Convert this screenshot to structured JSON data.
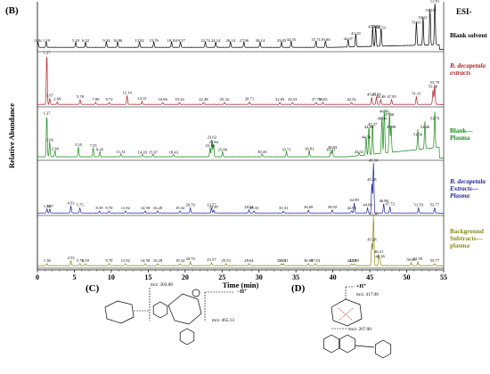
{
  "figure": {
    "panel_b": "(B)",
    "panel_c": "(C)",
    "panel_d": "(D)",
    "ion_mode": "ESI-",
    "xlabel": "Time (min)",
    "ylabel": "Relative Abundance"
  },
  "chart_data": {
    "type": "line",
    "xlim": [
      0,
      55
    ],
    "x_ticks": [
      0,
      5,
      10,
      15,
      20,
      25,
      30,
      35,
      40,
      45,
      50,
      55
    ],
    "traces": [
      {
        "name": "Blank solvent",
        "color": "#000000",
        "label_style": "normal",
        "peaks": [
          {
            "t": 0.06,
            "h": 0.12,
            "label": "0.06"
          },
          {
            "t": 1.19,
            "h": 0.12,
            "label": "1.19"
          },
          {
            "t": 5.19,
            "h": 0.12,
            "label": "5.19"
          },
          {
            "t": 6.52,
            "h": 0.12,
            "label": "6.52"
          },
          {
            "t": 9.34,
            "h": 0.12,
            "label": "9.34"
          },
          {
            "t": 10.86,
            "h": 0.12,
            "label": "10.86"
          },
          {
            "t": 13.82,
            "h": 0.12,
            "label": "13.82"
          },
          {
            "t": 15.76,
            "h": 0.12,
            "label": "15.76"
          },
          {
            "t": 18.16,
            "h": 0.12,
            "label": "18.16"
          },
          {
            "t": 19.37,
            "h": 0.12,
            "label": "19.37"
          },
          {
            "t": 22.74,
            "h": 0.12,
            "label": "22.74"
          },
          {
            "t": 24.14,
            "h": 0.12,
            "label": "24.14"
          },
          {
            "t": 26.14,
            "h": 0.12,
            "label": "26.14"
          },
          {
            "t": 27.96,
            "h": 0.12,
            "label": "27.96"
          },
          {
            "t": 30.14,
            "h": 0.12,
            "label": "30.14"
          },
          {
            "t": 33.05,
            "h": 0.12,
            "label": "33.05"
          },
          {
            "t": 34.35,
            "h": 0.14,
            "label": "34.35"
          },
          {
            "t": 37.71,
            "h": 0.14,
            "label": "37.71"
          },
          {
            "t": 39.0,
            "h": 0.14,
            "label": "39.00"
          },
          {
            "t": 42.07,
            "h": 0.16,
            "label": "42.07"
          },
          {
            "t": 43.1,
            "h": 0.28,
            "label": "43.10"
          },
          {
            "t": 45.39,
            "h": 0.42,
            "label": "45.39"
          },
          {
            "t": 45.8,
            "h": 0.43,
            "label": "45.80"
          },
          {
            "t": 46.53,
            "h": 0.4,
            "label": "46.53"
          },
          {
            "t": 51.31,
            "h": 0.52,
            "label": "51.31"
          },
          {
            "t": 52.21,
            "h": 0.62,
            "label": "52.21"
          },
          {
            "t": 53.15,
            "h": 0.78,
            "label": "53.15"
          },
          {
            "t": 53.81,
            "h": 1.0,
            "label": "53.81"
          }
        ]
      },
      {
        "name": "B. decapetala extracts",
        "color": "#b2222a",
        "label_style": "italic-first",
        "peaks": [
          {
            "t": 1.27,
            "h": 1.0,
            "label": "1.27"
          },
          {
            "t": 1.67,
            "h": 0.12,
            "label": "1.67"
          },
          {
            "t": 2.69,
            "h": 0.05,
            "label": "2.69"
          },
          {
            "t": 5.78,
            "h": 0.1,
            "label": "5.78"
          },
          {
            "t": 7.89,
            "h": 0.04,
            "label": "7.89"
          },
          {
            "t": 9.72,
            "h": 0.04,
            "label": "9.72"
          },
          {
            "t": 12.14,
            "h": 0.18,
            "label": "12.14"
          },
          {
            "t": 14.15,
            "h": 0.06,
            "label": "14.15"
          },
          {
            "t": 16.96,
            "h": 0.04,
            "label": "16.96"
          },
          {
            "t": 19.24,
            "h": 0.04,
            "label": "19.24"
          },
          {
            "t": 22.48,
            "h": 0.04,
            "label": "22.48"
          },
          {
            "t": 25.32,
            "h": 0.04,
            "label": "25.32"
          },
          {
            "t": 28.71,
            "h": 0.05,
            "label": "28.71"
          },
          {
            "t": 32.83,
            "h": 0.04,
            "label": "32.83"
          },
          {
            "t": 34.53,
            "h": 0.04,
            "label": "34.53"
          },
          {
            "t": 37.73,
            "h": 0.04,
            "label": "37.73"
          },
          {
            "t": 38.65,
            "h": 0.04,
            "label": "38.65"
          },
          {
            "t": 42.52,
            "h": 0.04,
            "label": "42.52"
          },
          {
            "t": 45.25,
            "h": 0.14,
            "label": "45.25"
          },
          {
            "t": 45.89,
            "h": 0.14,
            "label": "45.89"
          },
          {
            "t": 46.48,
            "h": 0.1,
            "label": "46.48"
          },
          {
            "t": 47.95,
            "h": 0.1,
            "label": "47.95"
          },
          {
            "t": 51.31,
            "h": 0.16,
            "label": "51.31"
          },
          {
            "t": 53.56,
            "h": 0.3,
            "label": "53.56"
          },
          {
            "t": 53.79,
            "h": 0.38,
            "label": "53.79"
          }
        ]
      },
      {
        "name": "Blank—Plasma",
        "color": "#1a8a1a",
        "label_style": "normal",
        "peaks": [
          {
            "t": 1.27,
            "h": 0.82,
            "label": "1.27"
          },
          {
            "t": 1.66,
            "h": 0.3,
            "label": "1.66"
          },
          {
            "t": 2.38,
            "h": 0.12,
            "label": "2.38"
          },
          {
            "t": 5.55,
            "h": 0.2,
            "label": "5.55"
          },
          {
            "t": 7.55,
            "h": 0.18,
            "label": "7.55"
          },
          {
            "t": 8.45,
            "h": 0.1,
            "label": "8.45"
          },
          {
            "t": 11.31,
            "h": 0.06,
            "label": "11.31"
          },
          {
            "t": 14.2,
            "h": 0.05,
            "label": "14.20"
          },
          {
            "t": 15.67,
            "h": 0.05,
            "label": "15.67"
          },
          {
            "t": 18.43,
            "h": 0.05,
            "label": "18.43"
          },
          {
            "t": 23.36,
            "h": 0.18,
            "label": "23.36"
          },
          {
            "t": 23.62,
            "h": 0.35,
            "label": "23.62"
          },
          {
            "t": 23.84,
            "h": 0.25,
            "label": "23.84"
          },
          {
            "t": 25.06,
            "h": 0.1,
            "label": "25.06"
          },
          {
            "t": 30.43,
            "h": 0.06,
            "label": "30.43"
          },
          {
            "t": 33.71,
            "h": 0.1,
            "label": "33.71"
          },
          {
            "t": 36.81,
            "h": 0.12,
            "label": "36.81"
          },
          {
            "t": 39.71,
            "h": 0.1,
            "label": "39.71"
          },
          {
            "t": 39.93,
            "h": 0.15,
            "label": "39.93"
          },
          {
            "t": 43.52,
            "h": 0.06,
            "label": "43.52"
          },
          {
            "t": 44.5,
            "h": 0.35,
            "label": "44.50"
          },
          {
            "t": 44.88,
            "h": 0.55,
            "label": "44.88"
          },
          {
            "t": 45.37,
            "h": 0.6,
            "label": "45.37"
          },
          {
            "t": 46.64,
            "h": 0.72,
            "label": "46.64"
          },
          {
            "t": 46.96,
            "h": 0.86,
            "label": "46.96"
          },
          {
            "t": 47.66,
            "h": 0.8,
            "label": "47.66"
          },
          {
            "t": 47.88,
            "h": 0.55,
            "label": "47.88"
          },
          {
            "t": 51.5,
            "h": 0.4,
            "label": "51.50"
          },
          {
            "t": 52.46,
            "h": 0.55,
            "label": "52.46"
          },
          {
            "t": 53.79,
            "h": 0.72,
            "label": "53.79"
          }
        ]
      },
      {
        "name": "B. decapetala Extracts—Plasma",
        "color": "#2323a0",
        "label_style": "italic-first",
        "peaks": [
          {
            "t": 1.3,
            "h": 0.08,
            "label": "1.30"
          },
          {
            "t": 1.67,
            "h": 0.08,
            "label": "1.67"
          },
          {
            "t": 4.53,
            "h": 0.14,
            "label": "4.53"
          },
          {
            "t": 5.75,
            "h": 0.1,
            "label": "5.75"
          },
          {
            "t": 8.39,
            "h": 0.04,
            "label": "8.39"
          },
          {
            "t": 9.7,
            "h": 0.04,
            "label": "9.70"
          },
          {
            "t": 11.92,
            "h": 0.04,
            "label": "11.92"
          },
          {
            "t": 14.58,
            "h": 0.04,
            "label": "14.58"
          },
          {
            "t": 16.28,
            "h": 0.04,
            "label": "16.28"
          },
          {
            "t": 19.32,
            "h": 0.04,
            "label": "19.32"
          },
          {
            "t": 20.7,
            "h": 0.1,
            "label": "20.70"
          },
          {
            "t": 23.57,
            "h": 0.1,
            "label": "23.57"
          },
          {
            "t": 23.87,
            "h": 0.06,
            "label": "23.87"
          },
          {
            "t": 28.64,
            "h": 0.06,
            "label": "28.64"
          },
          {
            "t": 29.33,
            "h": 0.04,
            "label": "29.33"
          },
          {
            "t": 33.31,
            "h": 0.04,
            "label": "33.31"
          },
          {
            "t": 36.69,
            "h": 0.06,
            "label": "36.69"
          },
          {
            "t": 39.92,
            "h": 0.06,
            "label": "39.92"
          },
          {
            "t": 42.53,
            "h": 0.04,
            "label": "42.53"
          },
          {
            "t": 42.89,
            "h": 0.2,
            "label": "42.89"
          },
          {
            "t": 44.69,
            "h": 0.1,
            "label": "44.69"
          },
          {
            "t": 45.28,
            "h": 0.6,
            "label": "45.28"
          },
          {
            "t": 45.5,
            "h": 1.0,
            "label": "45.50"
          },
          {
            "t": 46.88,
            "h": 0.18,
            "label": "46.88"
          },
          {
            "t": 47.72,
            "h": 0.12,
            "label": "47.72"
          },
          {
            "t": 51.59,
            "h": 0.1,
            "label": "51.59"
          },
          {
            "t": 53.77,
            "h": 0.1,
            "label": "53.77"
          }
        ]
      },
      {
        "name": "Background Subtracts—plasma",
        "color": "#8a8a14",
        "label_style": "normal",
        "peaks": [
          {
            "t": 1.3,
            "h": 0.04,
            "label": "1.30"
          },
          {
            "t": 4.53,
            "h": 0.1,
            "label": "4.53"
          },
          {
            "t": 5.75,
            "h": 0.04,
            "label": "5.75"
          },
          {
            "t": 6.5,
            "h": 0.04,
            "label": "6.50"
          },
          {
            "t": 9.7,
            "h": 0.04,
            "label": "9.70"
          },
          {
            "t": 11.92,
            "h": 0.04,
            "label": "11.92"
          },
          {
            "t": 14.58,
            "h": 0.04,
            "label": "14.58"
          },
          {
            "t": 16.28,
            "h": 0.04,
            "label": "16.28"
          },
          {
            "t": 19.32,
            "h": 0.04,
            "label": "19.32"
          },
          {
            "t": 20.7,
            "h": 0.08,
            "label": "20.70"
          },
          {
            "t": 23.57,
            "h": 0.06,
            "label": "23.57"
          },
          {
            "t": 25.53,
            "h": 0.04,
            "label": "25.53"
          },
          {
            "t": 28.64,
            "h": 0.04,
            "label": "28.64"
          },
          {
            "t": 33.03,
            "h": 0.04,
            "label": "33.03"
          },
          {
            "t": 33.31,
            "h": 0.04,
            "label": "33.31"
          },
          {
            "t": 36.68,
            "h": 0.04,
            "label": "36.68"
          },
          {
            "t": 37.63,
            "h": 0.04,
            "label": "37.63"
          },
          {
            "t": 42.53,
            "h": 0.04,
            "label": "42.53"
          },
          {
            "t": 42.89,
            "h": 0.04,
            "label": "42.89"
          },
          {
            "t": 45.28,
            "h": 0.46,
            "label": "45.28"
          },
          {
            "t": 45.5,
            "h": 1.0,
            "label": "45.50"
          },
          {
            "t": 46.21,
            "h": 0.22,
            "label": "46.21"
          },
          {
            "t": 46.38,
            "h": 0.12,
            "label": "46.38"
          },
          {
            "t": 50.6,
            "h": 0.06,
            "label": "50.60"
          },
          {
            "t": 51.5,
            "h": 0.08,
            "label": "51.50"
          },
          {
            "t": 53.77,
            "h": 0.04,
            "label": "53.77"
          }
        ]
      }
    ]
  },
  "structures": {
    "c": {
      "mz_top": "m/z: 303.08",
      "mz_right": "m/z: 465.13",
      "adduct": "−H⁺"
    },
    "d": {
      "mz_top": "m/z: 417.00",
      "mz_mid": "m/z: 267.00",
      "adduct": "+H⁺"
    }
  }
}
